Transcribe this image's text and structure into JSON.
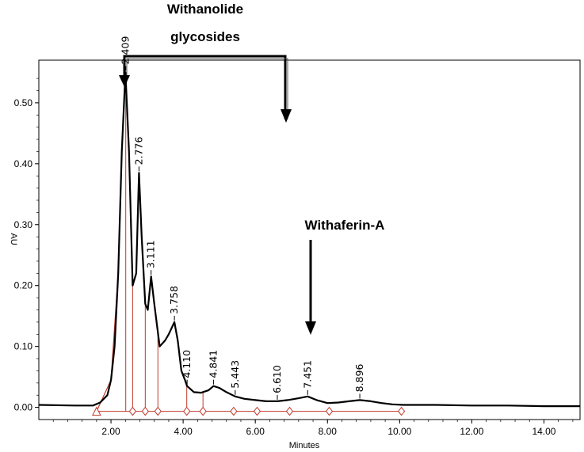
{
  "chart_data": {
    "type": "line",
    "xlabel": "Minutes",
    "ylabel": "AU",
    "xlim": [
      0.0,
      15.0
    ],
    "ylim": [
      -0.02,
      0.57
    ],
    "x_ticks": [
      "2.00",
      "4.00",
      "6.00",
      "8.00",
      "10.00",
      "12.00",
      "14.00"
    ],
    "y_ticks": [
      "0.00",
      "0.10",
      "0.20",
      "0.30",
      "0.40",
      "0.50"
    ],
    "colors": {
      "trace": "#000000",
      "baseline": "#c0392b"
    },
    "series": [
      {
        "x": [
          0.0,
          1.0,
          1.5,
          1.7,
          1.9,
          2.0,
          2.1,
          2.2,
          2.3,
          2.4,
          2.5,
          2.6,
          2.7,
          2.776,
          2.85,
          2.95,
          3.02,
          3.111,
          3.2,
          3.35,
          3.5,
          3.6,
          3.758,
          3.85,
          3.95,
          4.05,
          4.11,
          4.3,
          4.5,
          4.7,
          4.841,
          5.0,
          5.2,
          5.443,
          5.7,
          6.0,
          6.3,
          6.61,
          6.9,
          7.2,
          7.451,
          7.7,
          8.0,
          8.3,
          8.6,
          8.896,
          9.2,
          9.5,
          9.8,
          10.1,
          11.0,
          12.0,
          13.0,
          14.0,
          15.0
        ],
        "y": [
          0.004,
          0.003,
          0.003,
          0.008,
          0.02,
          0.045,
          0.1,
          0.22,
          0.42,
          0.55,
          0.42,
          0.2,
          0.22,
          0.385,
          0.28,
          0.17,
          0.16,
          0.215,
          0.17,
          0.1,
          0.11,
          0.12,
          0.14,
          0.11,
          0.06,
          0.045,
          0.035,
          0.025,
          0.024,
          0.028,
          0.035,
          0.032,
          0.025,
          0.018,
          0.014,
          0.012,
          0.01,
          0.01,
          0.012,
          0.015,
          0.018,
          0.012,
          0.007,
          0.008,
          0.01,
          0.012,
          0.01,
          0.007,
          0.005,
          0.004,
          0.004,
          0.003,
          0.003,
          0.002,
          0.002
        ]
      }
    ],
    "peaks": [
      {
        "label": "2.409",
        "x": 2.409,
        "y": 0.55
      },
      {
        "label": "2.776",
        "x": 2.776,
        "y": 0.385
      },
      {
        "label": "3.111",
        "x": 3.111,
        "y": 0.215
      },
      {
        "label": "3.758",
        "x": 3.758,
        "y": 0.14
      },
      {
        "label": "4.110",
        "x": 4.11,
        "y": 0.035
      },
      {
        "label": "4.841",
        "x": 4.841,
        "y": 0.035
      },
      {
        "label": "5.443",
        "x": 5.443,
        "y": 0.018
      },
      {
        "label": "6.610",
        "x": 6.61,
        "y": 0.01
      },
      {
        "label": "7.451",
        "x": 7.451,
        "y": 0.018
      },
      {
        "label": "8.896",
        "x": 8.896,
        "y": 0.012
      }
    ],
    "integration_markers": [
      {
        "x": 1.6,
        "shape": "triangle"
      },
      {
        "x": 2.6,
        "shape": "diamond"
      },
      {
        "x": 2.95,
        "shape": "diamond"
      },
      {
        "x": 3.3,
        "shape": "diamond"
      },
      {
        "x": 4.1,
        "shape": "diamond"
      },
      {
        "x": 4.55,
        "shape": "diamond"
      },
      {
        "x": 5.4,
        "shape": "diamond"
      },
      {
        "x": 6.05,
        "shape": "diamond"
      },
      {
        "x": 6.95,
        "shape": "diamond"
      },
      {
        "x": 8.05,
        "shape": "diamond"
      },
      {
        "x": 10.05,
        "shape": "diamond"
      }
    ],
    "annotations": [
      {
        "text": "Withanolide",
        "line": 1
      },
      {
        "text": "glycosides",
        "line": 2
      },
      {
        "text": "Withaferin-A"
      }
    ]
  }
}
